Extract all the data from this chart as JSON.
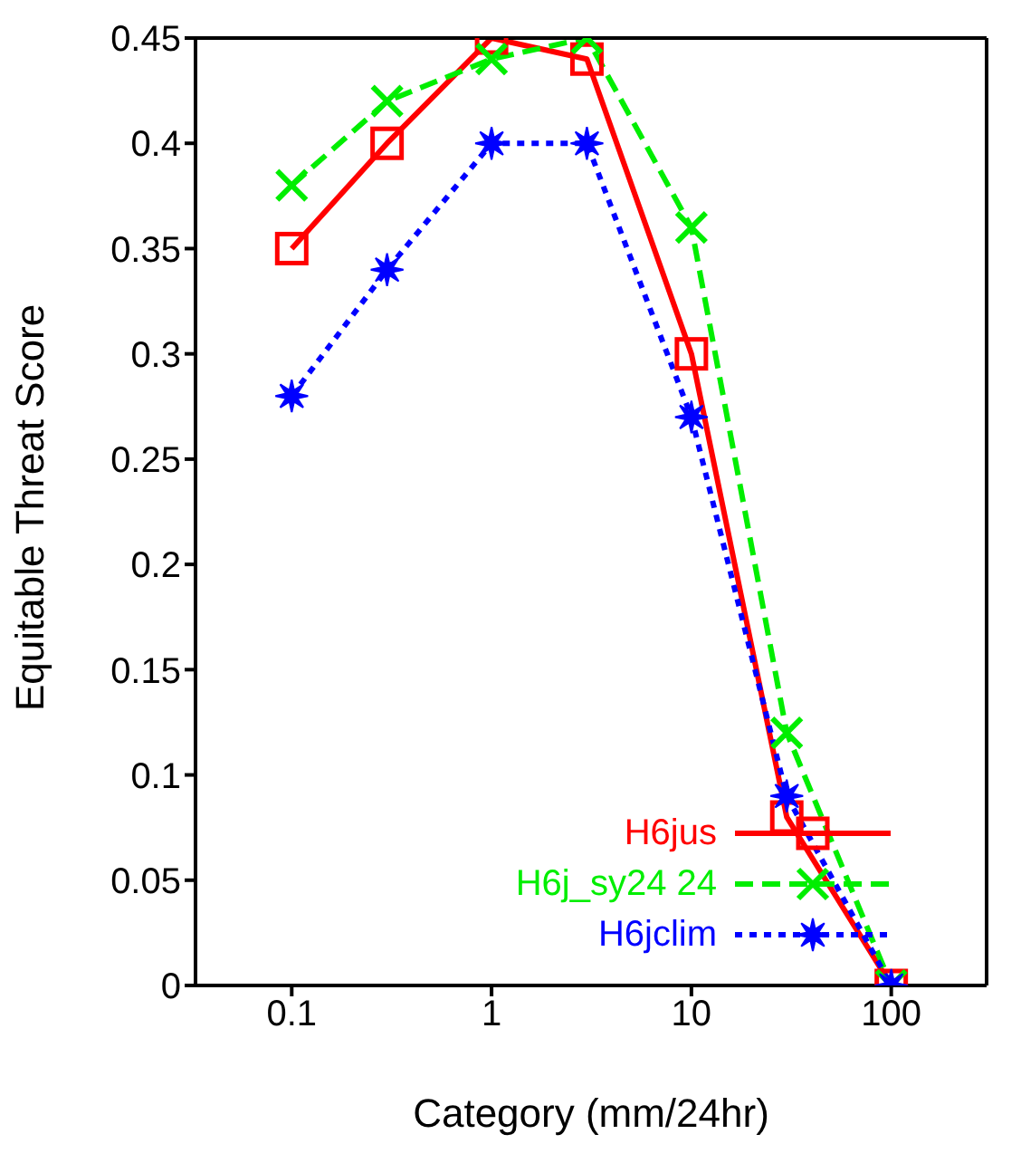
{
  "chart_data": {
    "type": "line",
    "xlabel": "Category (mm/24hr)",
    "ylabel": "Equitable Threat Score",
    "log": "x",
    "xlim": [
      0.033,
      300
    ],
    "xticks": [
      0.1,
      1,
      10,
      100
    ],
    "ylim": [
      0,
      0.45
    ],
    "yticks": [
      0,
      0.05,
      0.1,
      0.15,
      0.2,
      0.25,
      0.3,
      0.35,
      0.4,
      0.45
    ],
    "grid": false,
    "legend": "bottom right",
    "x": [
      0.1,
      0.3,
      1,
      3,
      10,
      30,
      100
    ],
    "series": [
      {
        "name": "H6jus",
        "color": "#ff0000",
        "marker": "square",
        "line_style": "solid",
        "values": [
          0.35,
          0.4,
          0.45,
          0.44,
          0.3,
          0.08,
          0
        ]
      },
      {
        "name": "H6j_sy24 24",
        "color": "#00ee00",
        "marker": "cross",
        "line_style": "dashed",
        "values": [
          0.38,
          0.42,
          0.44,
          0.45,
          0.36,
          0.12,
          0
        ]
      },
      {
        "name": "H6jclim",
        "color": "#0000ff",
        "marker": "star",
        "line_style": "dotted",
        "values": [
          0.28,
          0.34,
          0.4,
          0.4,
          0.27,
          0.09,
          0
        ]
      }
    ]
  }
}
